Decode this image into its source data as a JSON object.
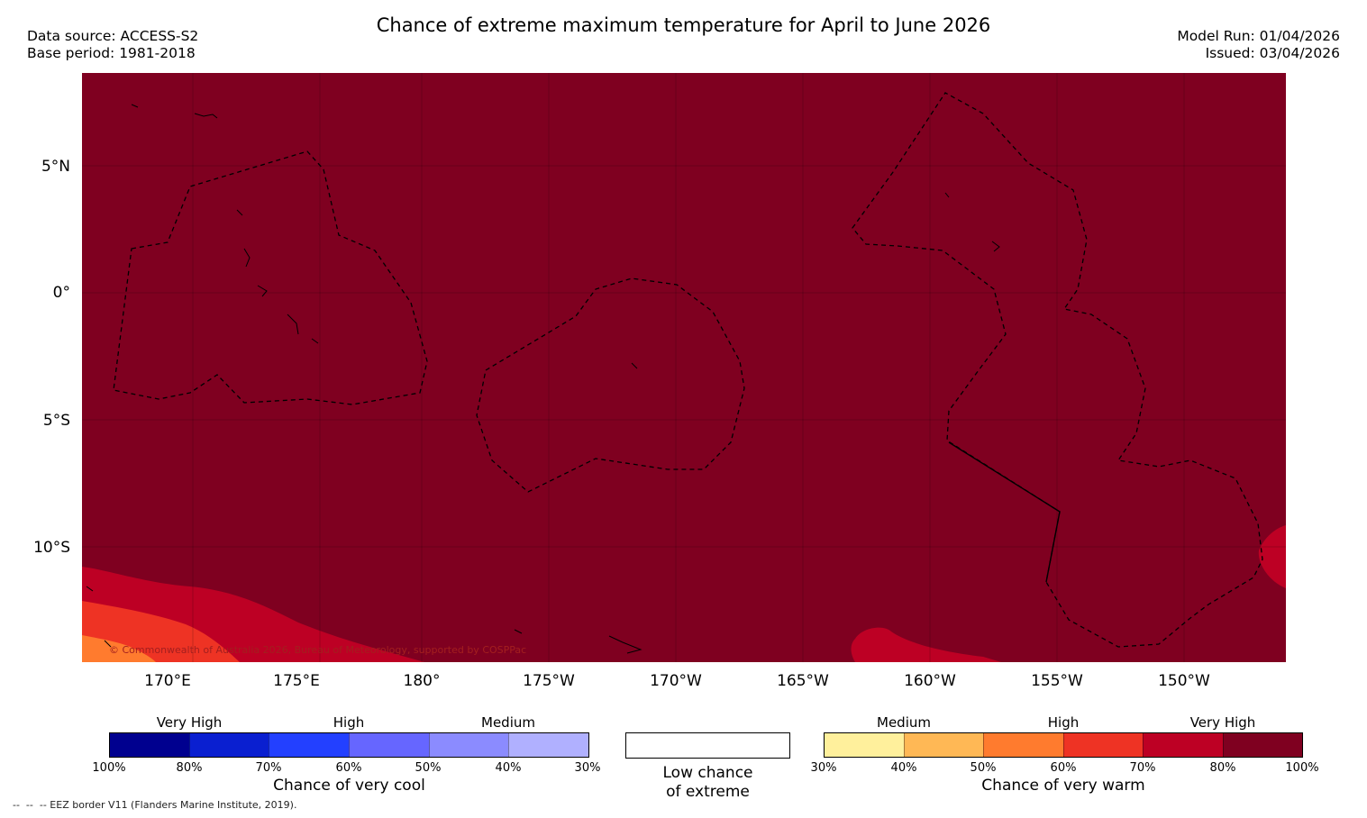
{
  "header": {
    "title": "Chance of extreme maximum temperature for April to June 2026",
    "data_source": "Data source: ACCESS-S2",
    "base_period": "Base period: 1981-2018",
    "model_run": "Model Run: 01/04/2026",
    "issued": "Issued: 03/04/2026"
  },
  "map": {
    "background_color": "#7f0020",
    "lat_labels": [
      "5°N",
      "0°",
      "5°S",
      "10°S"
    ],
    "lon_labels": [
      "170°E",
      "175°E",
      "180°",
      "175°W",
      "170°W",
      "165°W",
      "160°W",
      "155°W",
      "150°W"
    ],
    "copyright": "© Commonwealth of Australia 2026, Bureau of Meteorology, supported by COSPPac"
  },
  "legend": {
    "cool": {
      "headers": [
        "Very High",
        "High",
        "Medium"
      ],
      "colors": [
        "#00008f",
        "#0a1fd0",
        "#2340ff",
        "#6666ff",
        "#8b8bff",
        "#b0b0ff"
      ],
      "ticks": [
        "100%",
        "80%",
        "70%",
        "60%",
        "50%",
        "40%",
        "30%"
      ],
      "caption": "Chance of very cool"
    },
    "neutral": {
      "color": "#ffffff",
      "caption_line1": "Low chance",
      "caption_line2": "of extreme"
    },
    "warm": {
      "headers": [
        "Medium",
        "High",
        "Very High"
      ],
      "colors": [
        "#fff09c",
        "#ffb855",
        "#ff7b2e",
        "#ee3324",
        "#bd0024",
        "#7f0020"
      ],
      "ticks": [
        "30%",
        "40%",
        "50%",
        "60%",
        "70%",
        "80%",
        "100%"
      ],
      "caption": "Chance of very warm"
    }
  },
  "footer": {
    "eez_note": "--  --  -- EEZ border V11 (Flanders Marine Institute, 2019)."
  }
}
